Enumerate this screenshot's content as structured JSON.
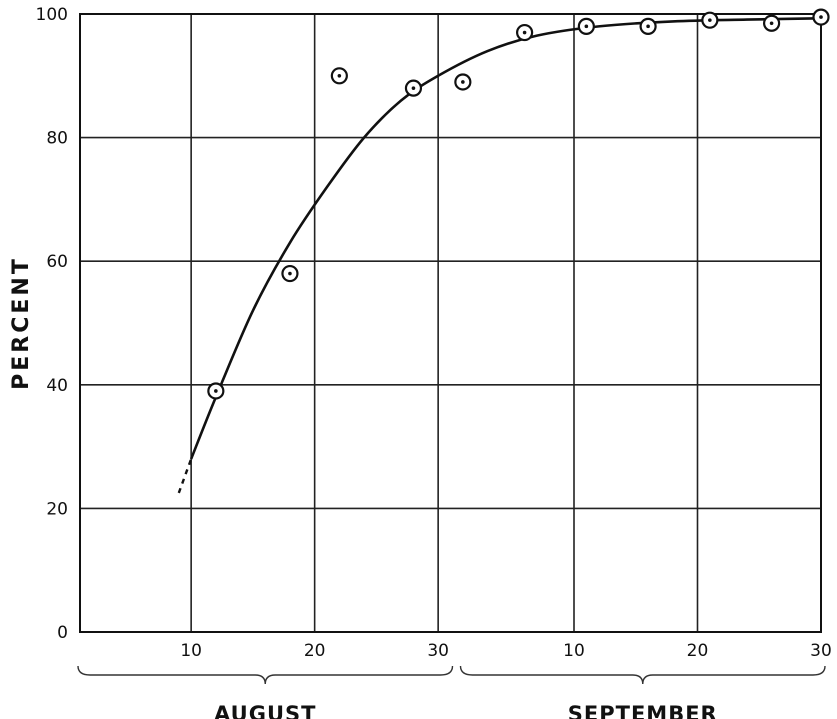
{
  "chart_data": {
    "type": "scatter",
    "title": "",
    "xlabel": "",
    "ylabel": "PERCENT",
    "ylim": [
      0,
      100
    ],
    "xlim": [
      "Aug 1",
      "Sep 30"
    ],
    "y_ticks": [
      "0",
      "20",
      "40",
      "60",
      "80",
      "100"
    ],
    "x_tick_groups": [
      {
        "month": "AUGUST",
        "ticks": [
          "10",
          "20",
          "30"
        ]
      },
      {
        "month": "SEPTEMBER",
        "ticks": [
          "10",
          "20",
          "30"
        ]
      }
    ],
    "x_ticks": [
      {
        "date": "Aug 10",
        "label": "10"
      },
      {
        "date": "Aug 20",
        "label": "20"
      },
      {
        "date": "Aug 30",
        "label": "30"
      },
      {
        "date": "Sep 10",
        "label": "10"
      },
      {
        "date": "Sep 20",
        "label": "20"
      },
      {
        "date": "Sep 30",
        "label": "30"
      }
    ],
    "grid": true,
    "points": [
      {
        "x": "Aug 12",
        "y": 39
      },
      {
        "x": "Aug 18",
        "y": 58
      },
      {
        "x": "Aug 22",
        "y": 90
      },
      {
        "x": "Aug 28",
        "y": 88
      },
      {
        "x": "Sep 1",
        "y": 89
      },
      {
        "x": "Sep 6",
        "y": 97
      },
      {
        "x": "Sep 11",
        "y": 98
      },
      {
        "x": "Sep 16",
        "y": 98
      },
      {
        "x": "Sep 21",
        "y": 99
      },
      {
        "x": "Sep 26",
        "y": 98.5
      },
      {
        "x": "Sep 30",
        "y": 99.5
      }
    ],
    "fit_curve": {
      "style": "solid",
      "points": [
        {
          "x": "Aug 10",
          "y": 28
        },
        {
          "x": "Aug 12",
          "y": 38
        },
        {
          "x": "Aug 15",
          "y": 52
        },
        {
          "x": "Aug 18",
          "y": 63
        },
        {
          "x": "Aug 21",
          "y": 72
        },
        {
          "x": "Aug 24",
          "y": 80
        },
        {
          "x": "Aug 27",
          "y": 86
        },
        {
          "x": "Aug 30",
          "y": 90
        },
        {
          "x": "Sep 3",
          "y": 94
        },
        {
          "x": "Sep 7",
          "y": 96.5
        },
        {
          "x": "Sep 12",
          "y": 98
        },
        {
          "x": "Sep 18",
          "y": 98.8
        },
        {
          "x": "Sep 24",
          "y": 99.1
        },
        {
          "x": "Sep 30",
          "y": 99.3
        }
      ]
    },
    "fit_extension": {
      "style": "dashed",
      "points": [
        {
          "x": "Aug 9",
          "y": 22.5
        },
        {
          "x": "Aug 10",
          "y": 28
        }
      ]
    }
  }
}
